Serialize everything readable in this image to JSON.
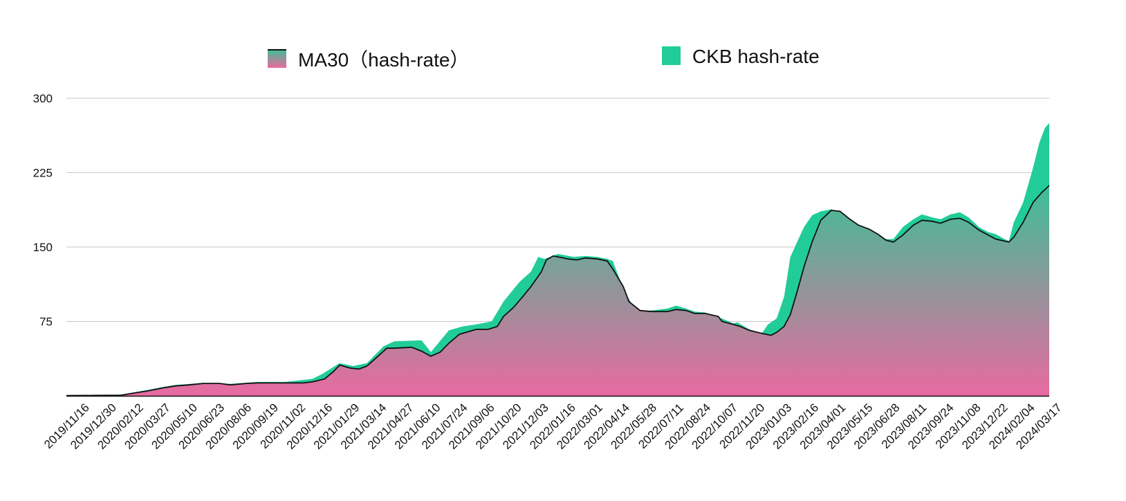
{
  "chart_data": {
    "type": "area",
    "title": "",
    "xlabel": "",
    "ylabel": "",
    "ylim": [
      0,
      300
    ],
    "y_ticks": [
      "75",
      "150",
      "225",
      "300"
    ],
    "grid": true,
    "legend_position": "top",
    "x_tick_labels": [
      "2019/11/16",
      "2019/12/30",
      "2020/02/12",
      "2020/03/27",
      "2020/05/10",
      "2020/06/23",
      "2020/08/06",
      "2020/09/19",
      "2020/11/02",
      "2020/12/16",
      "2021/01/29",
      "2021/03/14",
      "2021/04/27",
      "2021/06/10",
      "2021/07/24",
      "2021/09/06",
      "2021/10/20",
      "2021/12/03",
      "2022/01/16",
      "2022/03/01",
      "2022/04/14",
      "2022/05/28",
      "2022/07/11",
      "2022/08/24",
      "2022/10/07",
      "2022/11/20",
      "2023/01/03",
      "2023/02/16",
      "2023/04/01",
      "2023/05/15",
      "2023/06/28",
      "2023/08/11",
      "2023/09/24",
      "2023/11/08",
      "2023/12/22",
      "2024/02/04",
      "2024/03/17"
    ],
    "x_range": [
      "2019/11/16",
      "2024/03/17"
    ],
    "series": [
      {
        "name": "CKB hash-rate",
        "color": "#22cc99",
        "points": [
          [
            "2019/11/16",
            0.3
          ],
          [
            "2019/12/30",
            0.5
          ],
          [
            "2020/02/12",
            1.2
          ],
          [
            "2020/03/27",
            6
          ],
          [
            "2020/04/20",
            9
          ],
          [
            "2020/05/10",
            11
          ],
          [
            "2020/06/23",
            13
          ],
          [
            "2020/08/06",
            12
          ],
          [
            "2020/09/19",
            14
          ],
          [
            "2020/11/02",
            14
          ],
          [
            "2020/12/16",
            17
          ],
          [
            "2021/01/01",
            22
          ],
          [
            "2021/01/29",
            33
          ],
          [
            "2021/02/20",
            30
          ],
          [
            "2021/03/14",
            33
          ],
          [
            "2021/04/10",
            50
          ],
          [
            "2021/04/27",
            55
          ],
          [
            "2021/06/10",
            56
          ],
          [
            "2021/06/25",
            44
          ],
          [
            "2021/07/24",
            66
          ],
          [
            "2021/08/15",
            70
          ],
          [
            "2021/09/06",
            72
          ],
          [
            "2021/10/01",
            75
          ],
          [
            "2021/10/20",
            95
          ],
          [
            "2021/11/15",
            115
          ],
          [
            "2021/12/03",
            125
          ],
          [
            "2021/12/15",
            140
          ],
          [
            "2021/12/25",
            138
          ],
          [
            "2022/01/16",
            143
          ],
          [
            "2022/02/10",
            140
          ],
          [
            "2022/03/01",
            141
          ],
          [
            "2022/03/20",
            140
          ],
          [
            "2022/04/05",
            138
          ],
          [
            "2022/04/14",
            136
          ],
          [
            "2022/05/01",
            108
          ],
          [
            "2022/05/15",
            92
          ],
          [
            "2022/05/28",
            86
          ],
          [
            "2022/06/15",
            86
          ],
          [
            "2022/07/11",
            88
          ],
          [
            "2022/07/25",
            91
          ],
          [
            "2022/08/10",
            88
          ],
          [
            "2022/08/24",
            85
          ],
          [
            "2022/09/10",
            84
          ],
          [
            "2022/10/01",
            79
          ],
          [
            "2022/10/07",
            78
          ],
          [
            "2022/10/25",
            73
          ],
          [
            "2022/11/01",
            74
          ],
          [
            "2022/11/20",
            67
          ],
          [
            "2022/12/10",
            63
          ],
          [
            "2022/12/20",
            72
          ],
          [
            "2023/01/03",
            78
          ],
          [
            "2023/01/15",
            100
          ],
          [
            "2023/01/25",
            140
          ],
          [
            "2023/02/05",
            155
          ],
          [
            "2023/02/16",
            170
          ],
          [
            "2023/03/01",
            182
          ],
          [
            "2023/03/15",
            186
          ],
          [
            "2023/04/01",
            188
          ],
          [
            "2023/04/15",
            184
          ],
          [
            "2023/05/01",
            176
          ],
          [
            "2023/05/15",
            172
          ],
          [
            "2023/06/01",
            168
          ],
          [
            "2023/06/15",
            163
          ],
          [
            "2023/06/28",
            158
          ],
          [
            "2023/07/10",
            158
          ],
          [
            "2023/07/25",
            170
          ],
          [
            "2023/08/11",
            178
          ],
          [
            "2023/08/25",
            183
          ],
          [
            "2023/09/10",
            180
          ],
          [
            "2023/09/24",
            178
          ],
          [
            "2023/10/10",
            183
          ],
          [
            "2023/10/25",
            185
          ],
          [
            "2023/11/08",
            180
          ],
          [
            "2023/11/25",
            170
          ],
          [
            "2023/12/10",
            165
          ],
          [
            "2023/12/22",
            163
          ],
          [
            "2024/01/05",
            158
          ],
          [
            "2024/01/12",
            156
          ],
          [
            "2024/01/20",
            175
          ],
          [
            "2024/02/04",
            195
          ],
          [
            "2024/02/20",
            230
          ],
          [
            "2024/03/01",
            255
          ],
          [
            "2024/03/10",
            270
          ],
          [
            "2024/03/17",
            275
          ]
        ]
      },
      {
        "name": "MA30（hash-rate）",
        "color_top": "#3dbf96",
        "color_bottom": "#e86aa0",
        "line_color": "#111111",
        "points": [
          [
            "2019/11/16",
            0.2
          ],
          [
            "2019/12/30",
            0.4
          ],
          [
            "2020/02/12",
            0.6
          ],
          [
            "2020/02/25",
            2
          ],
          [
            "2020/03/27",
            5
          ],
          [
            "2020/04/20",
            8
          ],
          [
            "2020/05/10",
            10
          ],
          [
            "2020/06/01",
            11
          ],
          [
            "2020/06/23",
            12.5
          ],
          [
            "2020/07/20",
            12.5
          ],
          [
            "2020/08/06",
            11
          ],
          [
            "2020/09/01",
            12.5
          ],
          [
            "2020/09/19",
            13
          ],
          [
            "2020/11/02",
            13
          ],
          [
            "2020/12/01",
            13
          ],
          [
            "2020/12/16",
            14
          ],
          [
            "2021/01/05",
            17
          ],
          [
            "2021/01/20",
            25
          ],
          [
            "2021/01/29",
            31
          ],
          [
            "2021/02/15",
            28
          ],
          [
            "2021/03/01",
            27
          ],
          [
            "2021/03/14",
            30
          ],
          [
            "2021/04/01",
            40
          ],
          [
            "2021/04/15",
            48
          ],
          [
            "2021/04/27",
            48
          ],
          [
            "2021/05/25",
            49
          ],
          [
            "2021/06/10",
            45
          ],
          [
            "2021/06/25",
            40
          ],
          [
            "2021/07/10",
            44
          ],
          [
            "2021/07/24",
            53
          ],
          [
            "2021/08/10",
            62
          ],
          [
            "2021/09/06",
            67
          ],
          [
            "2021/09/25",
            67
          ],
          [
            "2021/10/10",
            70
          ],
          [
            "2021/10/20",
            80
          ],
          [
            "2021/11/05",
            89
          ],
          [
            "2021/11/20",
            100
          ],
          [
            "2021/12/03",
            110
          ],
          [
            "2021/12/20",
            125
          ],
          [
            "2021/12/28",
            137
          ],
          [
            "2022/01/08",
            141
          ],
          [
            "2022/01/16",
            140
          ],
          [
            "2022/02/01",
            138
          ],
          [
            "2022/02/15",
            137
          ],
          [
            "2022/03/01",
            139
          ],
          [
            "2022/03/20",
            138
          ],
          [
            "2022/04/05",
            136
          ],
          [
            "2022/04/14",
            128
          ],
          [
            "2022/05/01",
            110
          ],
          [
            "2022/05/10",
            95
          ],
          [
            "2022/05/28",
            86
          ],
          [
            "2022/06/15",
            85
          ],
          [
            "2022/07/11",
            85
          ],
          [
            "2022/07/25",
            87
          ],
          [
            "2022/08/10",
            86
          ],
          [
            "2022/08/24",
            83
          ],
          [
            "2022/09/10",
            83
          ],
          [
            "2022/10/01",
            80
          ],
          [
            "2022/10/07",
            75
          ],
          [
            "2022/10/25",
            72
          ],
          [
            "2022/11/05",
            70
          ],
          [
            "2022/11/20",
            66
          ],
          [
            "2022/12/10",
            63
          ],
          [
            "2022/12/25",
            61
          ],
          [
            "2023/01/03",
            64
          ],
          [
            "2023/01/15",
            70
          ],
          [
            "2023/01/25",
            82
          ],
          [
            "2023/02/05",
            105
          ],
          [
            "2023/02/16",
            130
          ],
          [
            "2023/03/01",
            155
          ],
          [
            "2023/03/15",
            177
          ],
          [
            "2023/04/01",
            187
          ],
          [
            "2023/04/15",
            186
          ],
          [
            "2023/05/01",
            178
          ],
          [
            "2023/05/15",
            172
          ],
          [
            "2023/06/01",
            168
          ],
          [
            "2023/06/15",
            163
          ],
          [
            "2023/06/28",
            157
          ],
          [
            "2023/07/10",
            155
          ],
          [
            "2023/07/25",
            162
          ],
          [
            "2023/08/11",
            172
          ],
          [
            "2023/08/25",
            177
          ],
          [
            "2023/09/10",
            176
          ],
          [
            "2023/09/24",
            174
          ],
          [
            "2023/10/10",
            178
          ],
          [
            "2023/10/25",
            179
          ],
          [
            "2023/11/08",
            175
          ],
          [
            "2023/11/25",
            167
          ],
          [
            "2023/12/10",
            162
          ],
          [
            "2023/12/22",
            158
          ],
          [
            "2024/01/05",
            156
          ],
          [
            "2024/01/12",
            155
          ],
          [
            "2024/01/20",
            160
          ],
          [
            "2024/02/04",
            175
          ],
          [
            "2024/02/20",
            195
          ],
          [
            "2024/03/05",
            205
          ],
          [
            "2024/03/17",
            212
          ]
        ]
      }
    ]
  }
}
